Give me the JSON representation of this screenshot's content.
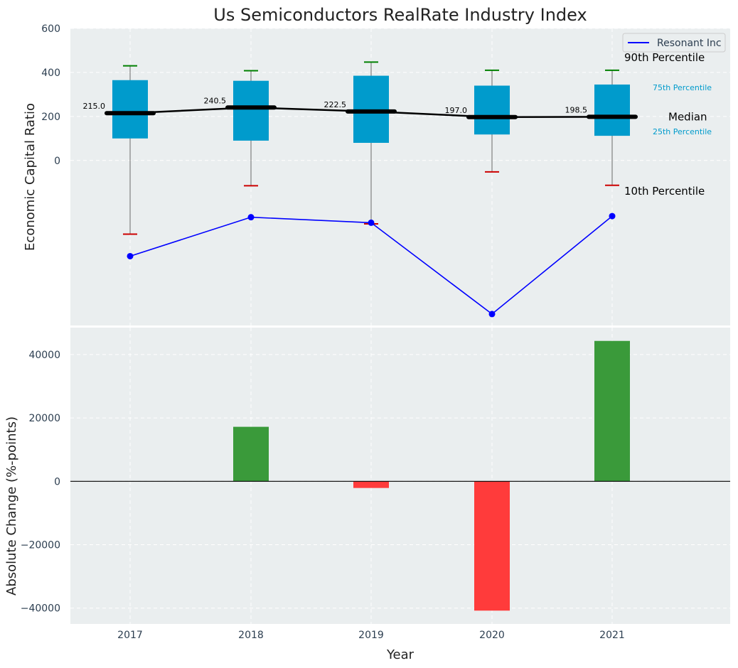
{
  "chart_data": [
    {
      "type": "box",
      "title": "Us Semiconductors RealRate Industry Index",
      "ylabel": "Economic Capital Ratio",
      "categories": [
        "2017",
        "2018",
        "2019",
        "2020",
        "2021"
      ],
      "ylim": [
        -750,
        600
      ],
      "yticks": [
        0,
        200,
        400,
        600
      ],
      "grid": true,
      "boxes": [
        {
          "year": "2017",
          "p10": -335,
          "p25": 100,
          "median": 215.0,
          "p75": 365,
          "p90": 430
        },
        {
          "year": "2018",
          "p10": -115,
          "p25": 90,
          "median": 240.5,
          "p75": 362,
          "p90": 408
        },
        {
          "year": "2019",
          "p10": -288,
          "p25": 80,
          "median": 222.5,
          "p75": 385,
          "p90": 447
        },
        {
          "year": "2020",
          "p10": -52,
          "p25": 118,
          "median": 197.0,
          "p75": 340,
          "p90": 410
        },
        {
          "year": "2021",
          "p10": -113,
          "p25": 112,
          "median": 198.5,
          "p75": 345,
          "p90": 410
        }
      ],
      "median_labels": [
        "215.0",
        "240.5",
        "222.5",
        "197.0",
        "198.5"
      ],
      "series": [
        {
          "name": "Resonant Inc",
          "values": [
            -435,
            -258,
            -283,
            -698,
            -253
          ],
          "color": "#0000ff"
        }
      ],
      "legend": {
        "position": "top-right",
        "entries": [
          "Resonant Inc"
        ]
      },
      "annotations": {
        "p90": "90th Percentile",
        "p75": "75th Percentile",
        "median": "Median",
        "p25": "25th Percentile",
        "p10": "10th Percentile"
      },
      "colors": {
        "box": "#009bcc",
        "median": "#000000",
        "whisker_top": "#008000",
        "whisker_bottom": "#cc0000",
        "background": "#eaeeef"
      }
    },
    {
      "type": "bar",
      "xlabel": "Year",
      "ylabel": "Absolute Change (%-points)",
      "categories": [
        "2017",
        "2018",
        "2019",
        "2020",
        "2021"
      ],
      "values": [
        0,
        17200,
        -2100,
        -40800,
        44300
      ],
      "ylim": [
        -45000,
        48500
      ],
      "yticks": [
        -40000,
        -20000,
        0,
        20000,
        40000
      ],
      "grid": true,
      "colors": {
        "positive": "#3a9a3a",
        "negative": "#ff3b3b"
      }
    }
  ]
}
